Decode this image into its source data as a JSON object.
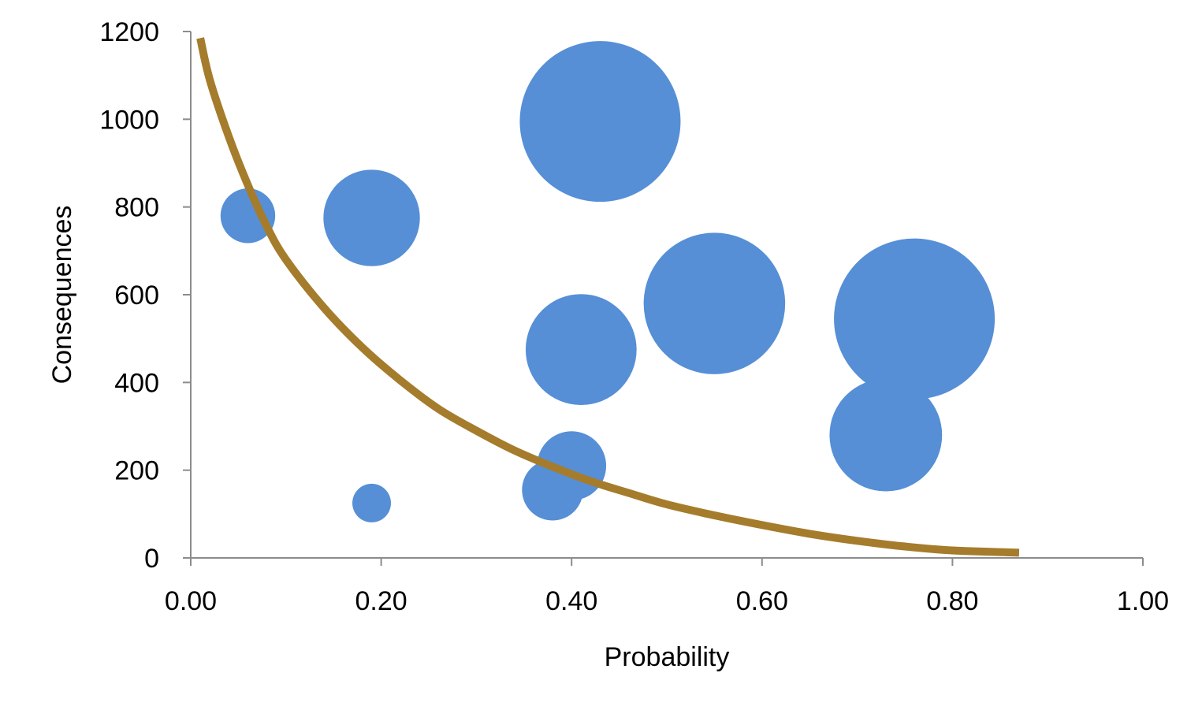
{
  "chart_data": {
    "type": "bubble",
    "xlabel": "Probability",
    "ylabel": "Consequences",
    "xlim": [
      0,
      1
    ],
    "ylim": [
      0,
      1200
    ],
    "x_ticks": [
      "0.00",
      "0.20",
      "0.40",
      "0.60",
      "0.80",
      "1.00"
    ],
    "y_ticks": [
      "0",
      "200",
      "400",
      "600",
      "800",
      "1000",
      "1200"
    ],
    "grid": false,
    "legend": "none",
    "series": [
      {
        "color": "#568fd6",
        "points": [
          {
            "x": 0.06,
            "y": 780,
            "r": 0.34
          },
          {
            "x": 0.19,
            "y": 775,
            "r": 0.6
          },
          {
            "x": 0.43,
            "y": 995,
            "r": 1.0
          },
          {
            "x": 0.41,
            "y": 475,
            "r": 0.69
          },
          {
            "x": 0.55,
            "y": 580,
            "r": 0.88
          },
          {
            "x": 0.76,
            "y": 545,
            "r": 1.0
          },
          {
            "x": 0.73,
            "y": 280,
            "r": 0.7
          },
          {
            "x": 0.4,
            "y": 210,
            "r": 0.43
          },
          {
            "x": 0.38,
            "y": 155,
            "r": 0.38
          },
          {
            "x": 0.19,
            "y": 125,
            "r": 0.24
          }
        ]
      },
      {
        "type": "curve",
        "color": "#a57c2c",
        "points": [
          {
            "x": 0.01,
            "y": 1185
          },
          {
            "x": 0.02,
            "y": 1090
          },
          {
            "x": 0.04,
            "y": 960
          },
          {
            "x": 0.06,
            "y": 850
          },
          {
            "x": 0.08,
            "y": 755
          },
          {
            "x": 0.1,
            "y": 680
          },
          {
            "x": 0.14,
            "y": 570
          },
          {
            "x": 0.18,
            "y": 480
          },
          {
            "x": 0.22,
            "y": 405
          },
          {
            "x": 0.26,
            "y": 340
          },
          {
            "x": 0.3,
            "y": 290
          },
          {
            "x": 0.34,
            "y": 245
          },
          {
            "x": 0.38,
            "y": 208
          },
          {
            "x": 0.42,
            "y": 175
          },
          {
            "x": 0.46,
            "y": 148
          },
          {
            "x": 0.5,
            "y": 122
          },
          {
            "x": 0.55,
            "y": 97
          },
          {
            "x": 0.6,
            "y": 75
          },
          {
            "x": 0.65,
            "y": 55
          },
          {
            "x": 0.7,
            "y": 39
          },
          {
            "x": 0.75,
            "y": 26
          },
          {
            "x": 0.8,
            "y": 17
          },
          {
            "x": 0.87,
            "y": 12
          }
        ]
      }
    ]
  }
}
